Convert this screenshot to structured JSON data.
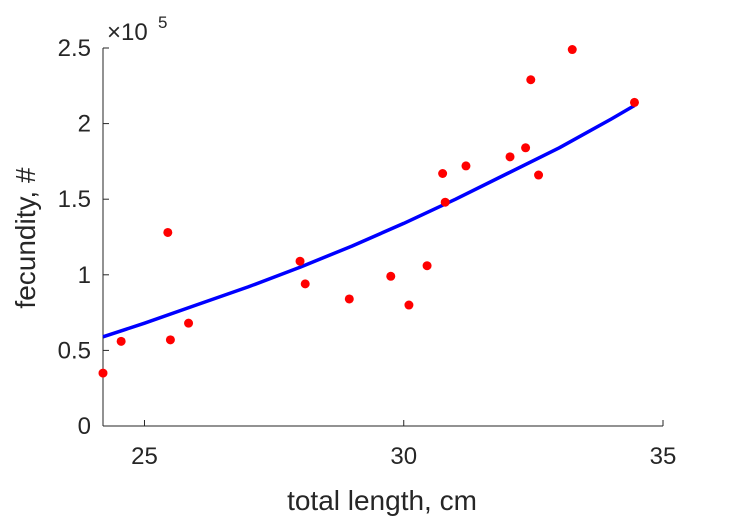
{
  "chart_data": {
    "type": "scatter",
    "title": "",
    "xlabel": "total length, cm",
    "ylabel": "fecundity, #",
    "xlim": [
      24.2,
      35.0
    ],
    "ylim": [
      0,
      250000
    ],
    "xticks": [
      25,
      30,
      35
    ],
    "xtick_labels": [
      "25",
      "30",
      "35"
    ],
    "yticks": [
      0,
      50000,
      100000,
      150000,
      200000,
      250000
    ],
    "ytick_labels": [
      "0",
      "0.5",
      "1",
      "1.5",
      "2",
      "2.5"
    ],
    "y_multiplier_base": "×10",
    "y_multiplier_exponent": "5",
    "grid": false,
    "points": {
      "color": "#ff0000",
      "x": [
        24.2,
        24.55,
        25.45,
        25.5,
        25.85,
        28.0,
        28.1,
        28.95,
        29.75,
        30.1,
        30.45,
        30.75,
        30.8,
        31.2,
        32.05,
        32.35,
        32.45,
        32.6,
        33.25,
        34.45
      ],
      "y": [
        35000,
        56000,
        128000,
        57000,
        68000,
        109000,
        94000,
        84000,
        99000,
        80000,
        106000,
        167000,
        148000,
        172000,
        178000,
        184000,
        229000,
        166000,
        249000,
        214000
      ]
    },
    "fit": {
      "color": "#0000ff",
      "x": [
        24.2,
        25.0,
        26.0,
        27.0,
        28.0,
        29.0,
        30.0,
        31.0,
        32.0,
        33.0,
        34.0,
        34.45
      ],
      "y": [
        59000,
        68000,
        80000,
        92000,
        105000,
        119000,
        134000,
        150000,
        167000,
        184000,
        203000,
        212000
      ]
    }
  }
}
